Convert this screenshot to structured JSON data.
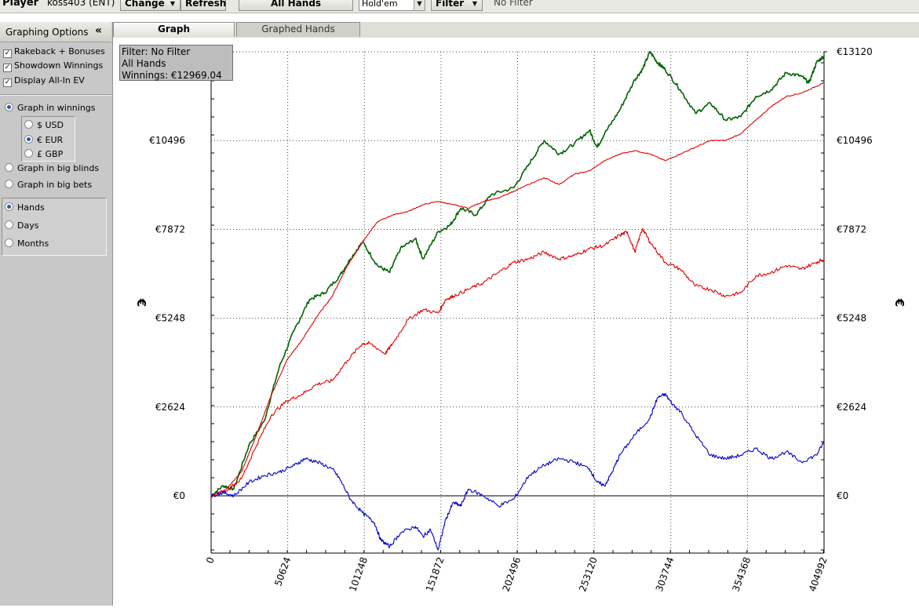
{
  "toolbar": {
    "player_label": "Player",
    "player_value": "koss403 (ENT)",
    "change_button": "Change",
    "refresh_button": "Refresh",
    "hands_button": "All Hands",
    "game_select": "Hold'em",
    "filter_button": "Filter",
    "filter_status": "No Filter"
  },
  "sidebar": {
    "title": "Graphing Options",
    "collapse_glyph": "«",
    "checkboxes": [
      {
        "label": "Rakeback + Bonuses",
        "checked": true
      },
      {
        "label": "Showdown Winnings",
        "checked": true
      },
      {
        "label": "Display All-In EV",
        "checked": true
      }
    ],
    "graph_mode": [
      {
        "label": "Graph in winnings",
        "selected": true
      },
      {
        "label": "Graph in big blinds",
        "selected": false
      },
      {
        "label": "Graph in big bets",
        "selected": false
      }
    ],
    "currency": [
      {
        "label": "$ USD",
        "selected": false
      },
      {
        "label": "€ EUR",
        "selected": true
      },
      {
        "label": "£ GBP",
        "selected": false
      }
    ],
    "x_axis": [
      {
        "label": "Hands",
        "selected": true
      },
      {
        "label": "Days",
        "selected": false
      },
      {
        "label": "Months",
        "selected": false
      }
    ]
  },
  "tabs": [
    {
      "label": "Graph",
      "active": true
    },
    {
      "label": "Graphed Hands",
      "active": false
    }
  ],
  "filter_box": {
    "line1": "Filter: No Filter",
    "line2": "All Hands",
    "line3": "Winnings: €12969.04"
  },
  "chart_data": {
    "type": "line",
    "ylabel": "€",
    "x_ticks": [
      0,
      50624,
      101248,
      151872,
      202496,
      253120,
      303744,
      354368,
      404992
    ],
    "y_ticks": [
      0,
      2624,
      5248,
      7872,
      10496,
      13120
    ],
    "y_tick_labels": [
      "€0",
      "€2624",
      "€5248",
      "€7872",
      "€10496",
      "€13120"
    ],
    "xlim": [
      0,
      404992
    ],
    "ylim": [
      -1680,
      13400
    ],
    "grid": true,
    "colors": {
      "green": "#006400",
      "red": "#e00000",
      "blue": "#0000cc"
    },
    "series": [
      {
        "color": "green",
        "x": [
          0,
          8000,
          15000,
          25000,
          35000,
          45000,
          55000,
          65000,
          75000,
          85000,
          92000,
          100000,
          110000,
          118000,
          125000,
          135000,
          140000,
          150000,
          158000,
          165000,
          175000,
          185000,
          200000,
          210000,
          220000,
          230000,
          240000,
          250000,
          255000,
          260000,
          270000,
          280000,
          285000,
          290000,
          295000,
          300000,
          310000,
          320000,
          330000,
          340000,
          350000,
          360000,
          370000,
          380000,
          390000,
          395000,
          400000,
          404992
        ],
        "y": [
          0,
          300,
          200,
          1500,
          2200,
          3800,
          4900,
          5800,
          6000,
          6500,
          7000,
          7500,
          6800,
          6600,
          7300,
          7600,
          7000,
          7800,
          8000,
          8500,
          8300,
          8900,
          9100,
          9800,
          10500,
          10100,
          10400,
          10800,
          10300,
          10700,
          11400,
          12300,
          12600,
          13120,
          12800,
          12600,
          12000,
          11300,
          11600,
          11100,
          11200,
          11800,
          12000,
          12500,
          12400,
          12200,
          12800,
          13000
        ]
      },
      {
        "color": "red",
        "x": [
          0,
          10000,
          20000,
          30000,
          40000,
          50000,
          60000,
          70000,
          80000,
          90000,
          100000,
          110000,
          120000,
          130000,
          140000,
          150000,
          160000,
          170000,
          180000,
          190000,
          200000,
          210000,
          220000,
          230000,
          240000,
          250000,
          260000,
          270000,
          280000,
          290000,
          300000,
          310000,
          320000,
          330000,
          340000,
          350000,
          360000,
          370000,
          380000,
          390000,
          400000,
          404992
        ],
        "y": [
          0,
          200,
          700,
          1800,
          3000,
          4000,
          4600,
          5300,
          5900,
          6800,
          7500,
          8100,
          8300,
          8400,
          8600,
          8700,
          8600,
          8500,
          8700,
          8800,
          9000,
          9200,
          9400,
          9200,
          9500,
          9600,
          9900,
          10100,
          10200,
          10100,
          9900,
          10100,
          10300,
          10500,
          10500,
          10700,
          11100,
          11500,
          11800,
          11900,
          12100,
          12200
        ]
      },
      {
        "color": "red",
        "x": [
          0,
          10000,
          20000,
          30000,
          40000,
          50000,
          60000,
          70000,
          80000,
          90000,
          100000,
          105000,
          115000,
          120000,
          130000,
          140000,
          150000,
          155000,
          160000,
          170000,
          180000,
          190000,
          200000,
          210000,
          220000,
          230000,
          240000,
          250000,
          260000,
          270000,
          275000,
          280000,
          285000,
          290000,
          300000,
          310000,
          320000,
          330000,
          340000,
          350000,
          360000,
          370000,
          380000,
          390000,
          400000,
          404992
        ],
        "y": [
          0,
          150,
          500,
          1500,
          2400,
          2800,
          3000,
          3300,
          3400,
          4000,
          4500,
          4500,
          4200,
          4500,
          5200,
          5500,
          5400,
          5800,
          5900,
          6100,
          6300,
          6600,
          6900,
          7000,
          7200,
          7000,
          7100,
          7300,
          7400,
          7700,
          7800,
          7200,
          7900,
          7500,
          6900,
          6700,
          6200,
          6100,
          5900,
          6000,
          6500,
          6600,
          6800,
          6700,
          6900,
          7000
        ]
      },
      {
        "color": "blue",
        "x": [
          0,
          8000,
          15000,
          25000,
          35000,
          45000,
          55000,
          62000,
          70000,
          80000,
          85000,
          92000,
          100000,
          108000,
          112000,
          118000,
          125000,
          135000,
          140000,
          145000,
          150000,
          155000,
          160000,
          165000,
          170000,
          180000,
          190000,
          200000,
          210000,
          220000,
          230000,
          240000,
          250000,
          255000,
          260000,
          265000,
          270000,
          280000,
          290000,
          295000,
          300000,
          305000,
          310000,
          320000,
          330000,
          340000,
          350000,
          360000,
          370000,
          380000,
          390000,
          400000,
          404992
        ],
        "y": [
          0,
          100,
          0,
          400,
          600,
          700,
          900,
          1100,
          1000,
          800,
          500,
          -100,
          -500,
          -800,
          -1300,
          -1500,
          -1100,
          -900,
          -1200,
          -1000,
          -1600,
          -700,
          -200,
          -300,
          200,
          0,
          -300,
          -100,
          600,
          900,
          1100,
          1000,
          800,
          400,
          300,
          700,
          1200,
          1800,
          2300,
          2900,
          3000,
          2700,
          2500,
          1800,
          1200,
          1100,
          1200,
          1400,
          1100,
          1300,
          1000,
          1200,
          1600
        ]
      }
    ]
  }
}
